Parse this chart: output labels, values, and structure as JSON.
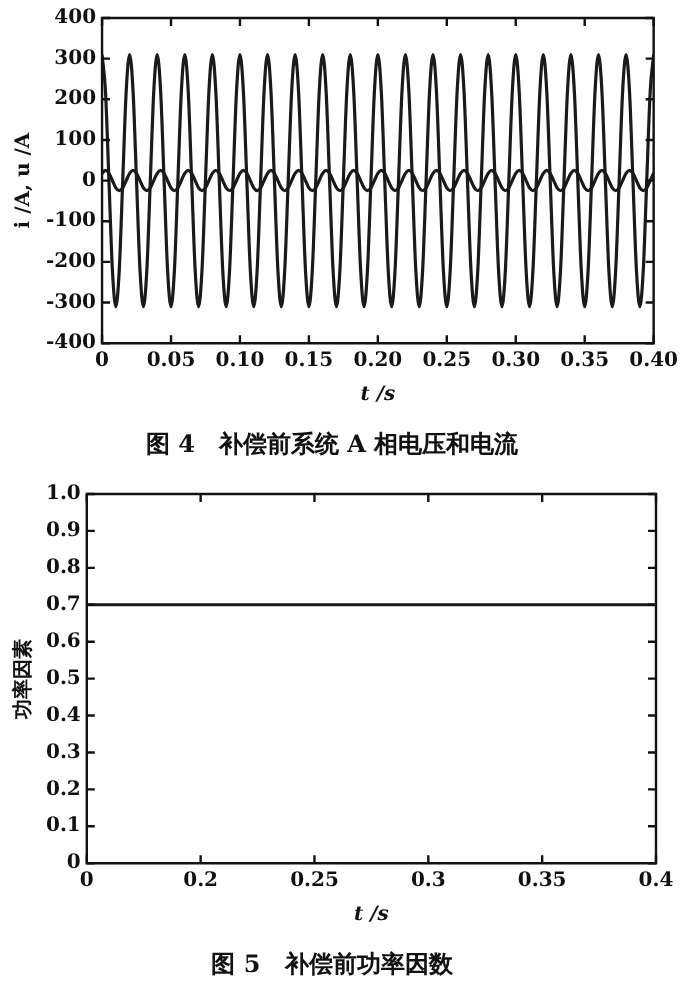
{
  "chart_data": [
    {
      "type": "line",
      "title": "图 4　补偿前系统 A 相电压和电流",
      "xlabel": "t /s",
      "ylabel": "i /A, u /A",
      "marker": "none",
      "line_style": "solid",
      "grid": false,
      "legend": false,
      "x": [
        0,
        0.0025,
        0.005,
        0.0075,
        0.01,
        0.0125,
        0.015,
        0.0175,
        0.02,
        0.0225,
        0.025,
        0.0275,
        0.03,
        0.0325,
        0.035,
        0.0375,
        0.04,
        0.0425,
        0.045,
        0.0475,
        0.05,
        0.0525,
        0.055,
        0.0575,
        0.06,
        0.0625,
        0.065,
        0.0675,
        0.07,
        0.0725,
        0.075,
        0.0775,
        0.08,
        0.0825,
        0.085,
        0.0875,
        0.09,
        0.0925,
        0.095,
        0.0975,
        0.1,
        0.1025,
        0.105,
        0.1075,
        0.11,
        0.1125,
        0.115,
        0.1175,
        0.12,
        0.1225,
        0.125,
        0.1275,
        0.13,
        0.1325,
        0.135,
        0.1375,
        0.14,
        0.1425,
        0.145,
        0.1475,
        0.15,
        0.1525,
        0.155,
        0.1575,
        0.16,
        0.1625,
        0.165,
        0.1675,
        0.17,
        0.1725,
        0.175,
        0.1775,
        0.18,
        0.1825,
        0.185,
        0.1875,
        0.19,
        0.1925,
        0.195,
        0.1975,
        0.2,
        0.2025,
        0.205,
        0.2075,
        0.21,
        0.2125,
        0.215,
        0.2175,
        0.22,
        0.2225,
        0.225,
        0.2275,
        0.23,
        0.2325,
        0.235,
        0.2375,
        0.24,
        0.2425,
        0.245,
        0.2475,
        0.25,
        0.2525,
        0.255,
        0.2575,
        0.26,
        0.2625,
        0.265,
        0.2675,
        0.27,
        0.2725,
        0.275,
        0.2775,
        0.28,
        0.2825,
        0.285,
        0.2875,
        0.29,
        0.2925,
        0.295,
        0.2975,
        0.3,
        0.3025,
        0.305,
        0.3075,
        0.31,
        0.3125,
        0.315,
        0.3175,
        0.32,
        0.3225,
        0.325,
        0.3275,
        0.33,
        0.3325,
        0.335,
        0.3375,
        0.34,
        0.3425,
        0.345,
        0.3475,
        0.35,
        0.3525,
        0.355,
        0.3575,
        0.36,
        0.3625,
        0.365,
        0.3675,
        0.37,
        0.3725,
        0.375,
        0.3775,
        0.38,
        0.3825,
        0.385,
        0.3875,
        0.39,
        0.3925,
        0.395,
        0.3975,
        0.4
      ],
      "series": [
        {
          "color": "#1a1a1a",
          "values": [
            310,
            219,
            0,
            -219,
            -310,
            -219,
            0,
            219,
            310,
            219,
            0,
            -219,
            -310,
            -219,
            0,
            219,
            310,
            219,
            0,
            -219,
            -310,
            -219,
            0,
            219,
            310,
            219,
            0,
            -219,
            -310,
            -219,
            0,
            219,
            310,
            219,
            0,
            -219,
            -310,
            -219,
            0,
            219,
            310,
            219,
            0,
            -219,
            -310,
            -219,
            0,
            219,
            310,
            219,
            0,
            -219,
            -310,
            -219,
            0,
            219,
            310,
            219,
            0,
            -219,
            -310,
            -219,
            0,
            219,
            310,
            219,
            0,
            -219,
            -310,
            -219,
            0,
            219,
            310,
            219,
            0,
            -219,
            -310,
            -219,
            0,
            219,
            310,
            219,
            0,
            -219,
            -310,
            -219,
            0,
            219,
            310,
            219,
            0,
            -219,
            -310,
            -219,
            0,
            219,
            310,
            219,
            0,
            -219,
            -310,
            -219,
            0,
            219,
            310,
            219,
            0,
            -219,
            -310,
            -219,
            0,
            219,
            310,
            219,
            0,
            -219,
            -310,
            -219,
            0,
            219,
            310,
            219,
            0,
            -219,
            -310,
            -219,
            0,
            219,
            310,
            219,
            0,
            -219,
            -310,
            -219,
            0,
            219,
            310,
            219,
            0,
            -219,
            -310,
            -219,
            0,
            219,
            310,
            219,
            0,
            -219,
            -310,
            -219,
            0,
            219,
            310,
            219,
            0,
            -219,
            -310,
            -219,
            0,
            219,
            310
          ]
        },
        {
          "color": "#1a1a1a",
          "values": [
            18,
            25,
            18,
            0,
            -18,
            -25,
            -18,
            0,
            18,
            25,
            18,
            0,
            -18,
            -25,
            -18,
            0,
            18,
            25,
            18,
            0,
            -18,
            -25,
            -18,
            0,
            18,
            25,
            18,
            0,
            -18,
            -25,
            -18,
            0,
            18,
            25,
            18,
            0,
            -18,
            -25,
            -18,
            0,
            18,
            25,
            18,
            0,
            -18,
            -25,
            -18,
            0,
            18,
            25,
            18,
            0,
            -18,
            -25,
            -18,
            0,
            18,
            25,
            18,
            0,
            -18,
            -25,
            -18,
            0,
            18,
            25,
            18,
            0,
            -18,
            -25,
            -18,
            0,
            18,
            25,
            18,
            0,
            -18,
            -25,
            -18,
            0,
            18,
            25,
            18,
            0,
            -18,
            -25,
            -18,
            0,
            18,
            25,
            18,
            0,
            -18,
            -25,
            -18,
            0,
            18,
            25,
            18,
            0,
            -18,
            -25,
            -18,
            0,
            18,
            25,
            18,
            0,
            -18,
            -25,
            -18,
            0,
            18,
            25,
            18,
            0,
            -18,
            -25,
            -18,
            0,
            18,
            25,
            18,
            0,
            -18,
            -25,
            -18,
            0,
            18,
            25,
            18,
            0,
            -18,
            -25,
            -18,
            0,
            18,
            25,
            18,
            0,
            -18,
            -25,
            -18,
            0,
            18,
            25,
            18,
            0,
            -18,
            -25,
            -18,
            0,
            18,
            25,
            18,
            0,
            -18,
            -25,
            -18,
            0,
            18
          ]
        }
      ],
      "xlim": [
        0,
        0.4
      ],
      "xticks": [
        0,
        0.05,
        {
          "value": 0.1,
          "label": "0.10"
        },
        0.15,
        {
          "value": 0.2,
          "label": "0.20"
        },
        0.25,
        {
          "value": 0.3,
          "label": "0.30"
        },
        0.35,
        {
          "value": 0.4,
          "label": "0.40"
        }
      ],
      "ylim": [
        -400,
        400
      ],
      "yticks": [
        -400,
        -300,
        -200,
        -100,
        0,
        100,
        200,
        300,
        400
      ]
    },
    {
      "type": "line",
      "title": "图 5　补偿前功率因数",
      "xlabel": "t /s",
      "ylabel": "功率因素",
      "marker": "none",
      "line_style": "solid",
      "grid": false,
      "legend": false,
      "categories": [
        "0",
        "0.2",
        "0.25",
        "0.3",
        "0.35",
        "0.4"
      ],
      "series": [
        {
          "color": "#1a1a1a",
          "values": [
            0.7,
            0.7,
            0.7,
            0.7,
            0.7,
            0.7
          ]
        }
      ],
      "ylim": [
        0,
        1
      ],
      "yticks": [
        0,
        0.1,
        0.2,
        0.3,
        0.4,
        0.5,
        0.6,
        0.7,
        0.8,
        0.9,
        {
          "value": 1,
          "label": "1.0"
        }
      ]
    }
  ]
}
